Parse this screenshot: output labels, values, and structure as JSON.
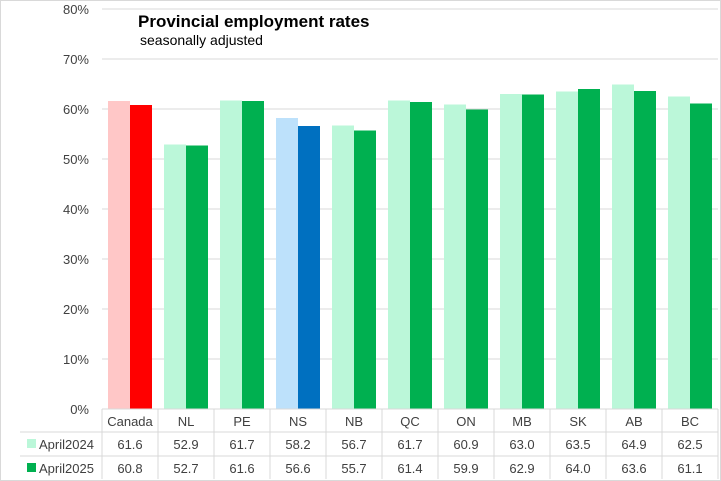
{
  "chart_data": {
    "type": "bar",
    "title": "Provincial employment rates",
    "subtitle": "seasonally adjusted",
    "xlabel": "",
    "ylabel": "",
    "ylim": [
      0,
      80
    ],
    "yticks": [
      "0%",
      "10%",
      "20%",
      "30%",
      "40%",
      "50%",
      "60%",
      "70%",
      "80%"
    ],
    "ytick_values": [
      0,
      10,
      20,
      30,
      40,
      50,
      60,
      70,
      80
    ],
    "grid": true,
    "legend": "data-table",
    "categories": [
      "Canada",
      "NL",
      "PE",
      "NS",
      "NB",
      "QC",
      "ON",
      "MB",
      "SK",
      "AB",
      "BC"
    ],
    "series": [
      {
        "name": "April2024",
        "values": [
          61.6,
          52.9,
          61.7,
          58.2,
          56.7,
          61.7,
          60.9,
          63.0,
          63.5,
          64.9,
          62.5
        ],
        "labels": [
          "61.6",
          "52.9",
          "61.7",
          "58.2",
          "56.7",
          "61.7",
          "60.9",
          "63.0",
          "63.5",
          "64.9",
          "62.5"
        ],
        "color": "#bbf7d9",
        "highlight_colors": {
          "Canada": "#ffc7c7",
          "NS": "#bde1fb"
        }
      },
      {
        "name": "April2025",
        "values": [
          60.8,
          52.7,
          61.6,
          56.6,
          55.7,
          61.4,
          59.9,
          62.9,
          64.0,
          63.6,
          61.1
        ],
        "labels": [
          "60.8",
          "52.7",
          "61.6",
          "56.6",
          "55.7",
          "61.4",
          "59.9",
          "62.9",
          "64.0",
          "63.6",
          "61.1"
        ],
        "color": "#00b050",
        "highlight_colors": {
          "Canada": "#ff0000",
          "NS": "#0070c0"
        }
      }
    ]
  },
  "colors": {
    "grid": "#d9d9d9",
    "text": "#404040"
  }
}
